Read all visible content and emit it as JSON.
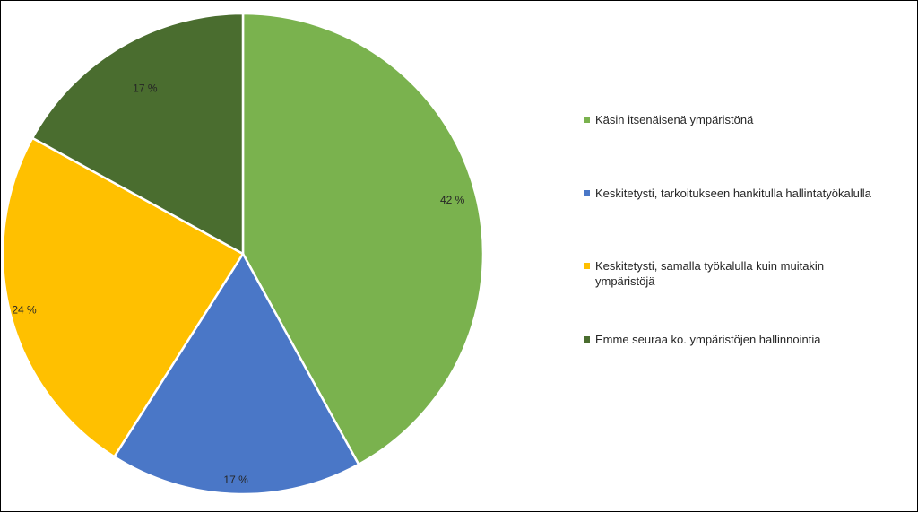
{
  "chart_data": {
    "type": "pie",
    "title": "",
    "slices": [
      {
        "label": "Käsin itsenäisenä ympäristönä",
        "value": 42,
        "value_label": "42 %",
        "color": "#7AB24E"
      },
      {
        "label": "Keskitetysti, tarkoitukseen hankitulla hallintatyökalulla",
        "value": 17,
        "value_label": "17 %",
        "color": "#4A77C7"
      },
      {
        "label": "Keskitetysti, samalla työkalulla kuin muitakin ympäristöjä",
        "value": 24,
        "value_label": "24 %",
        "color": "#FFC000"
      },
      {
        "label": "Emme seuraa ko. ympäristöjen hallinnointia",
        "value": 17,
        "value_label": "17 %",
        "color": "#4A6D2F"
      }
    ],
    "start_angle_deg": 0,
    "direction": "clockwise",
    "legend_position": "right"
  }
}
